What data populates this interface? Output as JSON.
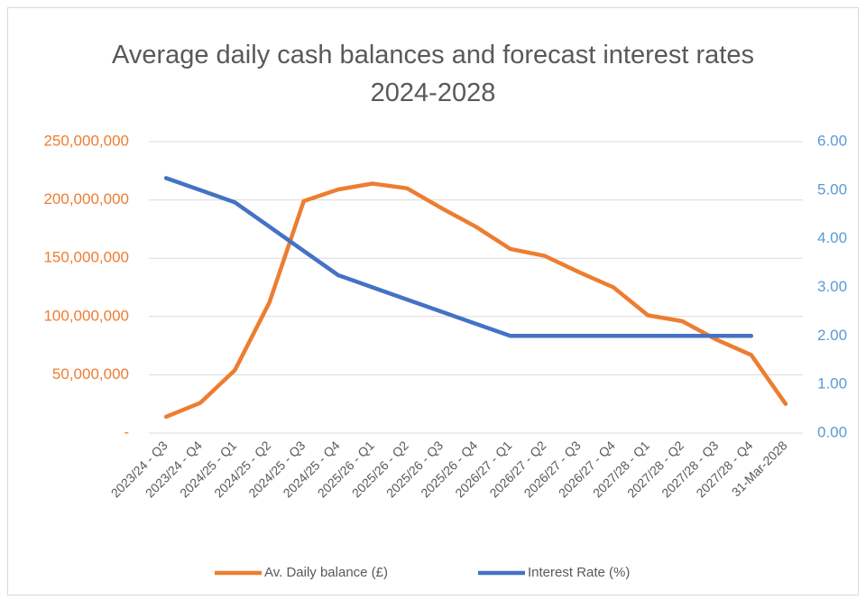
{
  "chart_data": {
    "type": "line",
    "title": "Average daily cash balances and forecast interest rates 2024-2028",
    "categories": [
      "2023/24 - Q3",
      "2023/24 - Q4",
      "2024/25 - Q1",
      "2024/25 - Q2",
      "2024/25 - Q3",
      "2024/25 - Q4",
      "2025/26 - Q1",
      "2025/26 - Q2",
      "2025/26 - Q3",
      "2025/26 - Q4",
      "2026/27 - Q1",
      "2026/27 - Q2",
      "2026/27 - Q3",
      "2026/27 - Q4",
      "2027/28 - Q1",
      "2027/28 - Q2",
      "2027/28 - Q3",
      "2027/28 - Q4",
      "31-Mar-2028"
    ],
    "series": [
      {
        "name": "Av. Daily balance (£)",
        "color": "#ED7D31",
        "values": [
          14000000,
          26000000,
          54000000,
          112000000,
          199000000,
          209000000,
          214000000,
          210000000,
          193000000,
          177000000,
          158000000,
          152000000,
          138000000,
          125000000,
          101000000,
          96000000,
          80000000,
          67000000,
          25000000
        ]
      },
      {
        "name": "Interest Rate (%)",
        "color": "#4472C4",
        "axis": "y2",
        "values": [
          5.25,
          5.0,
          4.75,
          4.25,
          3.75,
          3.25,
          3.0,
          2.75,
          2.5,
          2.25,
          2.0,
          2.0,
          2.0,
          2.0,
          2.0,
          2.0,
          2.0,
          2.0,
          null
        ]
      }
    ],
    "ylim": [
      0,
      250000000
    ],
    "yticks": [
      {
        "value": 0,
        "label": "-"
      },
      {
        "value": 50000000,
        "label": "50,000,000"
      },
      {
        "value": 100000000,
        "label": "100,000,000"
      },
      {
        "value": 150000000,
        "label": "150,000,000"
      },
      {
        "value": 200000000,
        "label": "200,000,000"
      },
      {
        "value": 250000000,
        "label": "250,000,000"
      }
    ],
    "y2lim": [
      0,
      6
    ],
    "y2ticks": [
      {
        "value": 0,
        "label": "0.00"
      },
      {
        "value": 1,
        "label": "1.00"
      },
      {
        "value": 2,
        "label": "2.00"
      },
      {
        "value": 3,
        "label": "3.00"
      },
      {
        "value": 4,
        "label": "4.00"
      },
      {
        "value": 5,
        "label": "5.00"
      },
      {
        "value": 6,
        "label": "6.00"
      }
    ],
    "grid": true,
    "legend": "bottom"
  }
}
